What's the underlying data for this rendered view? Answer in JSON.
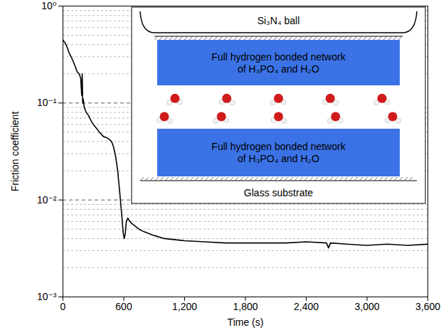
{
  "chart_data": {
    "type": "line",
    "x_label": "Time (s)",
    "y_label": "Friction coefficient",
    "log": "y",
    "grid": true,
    "xlim": [
      0,
      3600
    ],
    "xticks": [
      0,
      600,
      {
        "value": 1200,
        "label": "1,200"
      },
      {
        "value": 1800,
        "label": "1,800"
      },
      {
        "value": 2400,
        "label": "2,400"
      },
      {
        "value": 3000,
        "label": "3,000"
      },
      {
        "value": 3600,
        "label": "3,600"
      }
    ],
    "ylim": [
      0.001,
      1
    ],
    "yticks": [
      {
        "value": 0.001,
        "label": "10⁻³"
      },
      {
        "value": 0.01,
        "label": "10⁻²"
      },
      {
        "value": 0.1,
        "label": "10⁻¹"
      },
      {
        "value": 1,
        "label": "10⁰"
      }
    ],
    "x": [
      0,
      10,
      20,
      40,
      60,
      80,
      100,
      120,
      140,
      160,
      175,
      185,
      190,
      195,
      200,
      210,
      230,
      250,
      280,
      300,
      330,
      360,
      400,
      430,
      460,
      480,
      500,
      520,
      540,
      560,
      580,
      595,
      605,
      615,
      625,
      640,
      660,
      680,
      700,
      750,
      800,
      900,
      1000,
      1200,
      1400,
      1600,
      1800,
      2000,
      2200,
      2400,
      2600,
      2620,
      2640,
      2800,
      3000,
      3200,
      3400,
      3600
    ],
    "series": [
      {
        "name": "Friction coefficient",
        "color": "#000000",
        "values": [
          0.45,
          0.43,
          0.42,
          0.38,
          0.33,
          0.3,
          0.27,
          0.24,
          0.21,
          0.2,
          0.18,
          0.12,
          0.2,
          0.1,
          0.11,
          0.09,
          0.08,
          0.075,
          0.065,
          0.06,
          0.055,
          0.05,
          0.045,
          0.044,
          0.042,
          0.04,
          0.035,
          0.028,
          0.02,
          0.012,
          0.007,
          0.0045,
          0.004,
          0.0045,
          0.006,
          0.0065,
          0.006,
          0.0057,
          0.0055,
          0.005,
          0.0047,
          0.0043,
          0.004,
          0.0038,
          0.0037,
          0.0036,
          0.0036,
          0.0036,
          0.0036,
          0.0037,
          0.0036,
          0.0032,
          0.0036,
          0.0035,
          0.0034,
          0.0035,
          0.0034,
          0.0035
        ]
      }
    ],
    "annotations": [
      "Si₃N₄ ball",
      "Full hydrogen bonded network of H₃PO₄ and H₂O",
      "Full hydrogen bonded network of H₃PO₄ and H₂O",
      "Glass substrate"
    ]
  }
}
